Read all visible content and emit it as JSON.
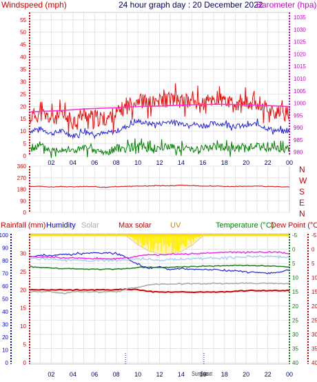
{
  "header": {
    "wind_label": "Windspeed (mph)",
    "title": "24 hour graph day : 20 December 2022",
    "baro_label": "Barometer (hpa)"
  },
  "compass": [
    "N",
    "W",
    "S",
    "E",
    "N"
  ],
  "bottom_labels": {
    "rain": "Rainfall (mm)",
    "humidity": "Humidity",
    "solar": "Solar",
    "maxsolar": "Max solar",
    "uv": "UV",
    "temp": "Temperature (°C)",
    "dew": "Dew Point (°C)"
  },
  "marker_labels": {
    "sunrise": "Sunrise",
    "sunset": "Sunset"
  },
  "colors": {
    "wind_gust": "#ff0000",
    "wind_avg": "#2020e0",
    "wind_low": "#008000",
    "barometer": "#ff33cc",
    "direction": "#dd2222",
    "humidity": "#2222cc",
    "rain_line": "#cc0000",
    "solar": "#aaaaaa",
    "temperature": "#228822",
    "dewpoint": "#ee22ee",
    "feels": "#aaccee",
    "uv": "#ffee00",
    "axis_red": "#cc0000",
    "axis_magenta": "#cc00cc",
    "axis_blue": "#0000cc",
    "axis_green": "#008000"
  },
  "chart_data": [
    {
      "type": "line",
      "title": "24 hour graph day : 20 December 2022",
      "ylabel": "Windspeed (mph)",
      "y2label": "Barometer (hpa)",
      "x_ticks": [
        "02",
        "04",
        "06",
        "08",
        "10",
        "12",
        "14",
        "16",
        "18",
        "20",
        "22",
        "00"
      ],
      "x_range": [
        0,
        24
      ],
      "y_ticks": [
        0,
        5,
        10,
        15,
        20,
        25,
        30,
        35,
        40,
        45,
        50,
        55
      ],
      "ylim": [
        0,
        58
      ],
      "y2_ticks": [
        980,
        985,
        990,
        995,
        1000,
        1005,
        1010,
        1015,
        1020,
        1025,
        1030,
        1035
      ],
      "y2lim": [
        978.5,
        1037
      ],
      "x": [
        0,
        1,
        2,
        3,
        4,
        5,
        6,
        7,
        8,
        9,
        10,
        11,
        12,
        13,
        14,
        15,
        16,
        17,
        18,
        19,
        20,
        21,
        22,
        23,
        24
      ],
      "series": [
        {
          "name": "gust",
          "values": [
            16,
            17,
            15,
            16,
            14,
            17,
            15,
            15,
            17,
            20,
            23,
            21,
            22,
            23,
            22,
            22,
            21,
            23,
            22,
            20,
            21,
            22,
            19,
            17,
            17
          ]
        },
        {
          "name": "average",
          "values": [
            10,
            11,
            9,
            10,
            8,
            10,
            9,
            9,
            10,
            12,
            14,
            13,
            13,
            14,
            13,
            13,
            12,
            13,
            13,
            12,
            12,
            13,
            11,
            10,
            10
          ]
        },
        {
          "name": "low",
          "values": [
            3,
            4,
            2,
            3,
            2,
            3,
            2,
            1,
            3,
            3,
            4,
            3,
            3,
            4,
            3,
            3,
            3,
            4,
            3,
            3,
            3,
            4,
            3,
            3,
            3
          ]
        },
        {
          "name": "barometer",
          "values": [
            996.4,
            996.6,
            996.8,
            997.0,
            997.3,
            997.6,
            997.8,
            998.0,
            998.1,
            998.4,
            998.6,
            998.8,
            998.8,
            999.0,
            999.2,
            999.3,
            999.4,
            999.5,
            999.5,
            999.4,
            999.3,
            999.2,
            999.0,
            998.8,
            998.6
          ]
        }
      ]
    },
    {
      "type": "line",
      "ylabel": "Direction",
      "y_ticks": [
        0,
        90,
        180,
        270,
        360
      ],
      "ylim": [
        0,
        360
      ],
      "x": [
        0,
        1,
        2,
        3,
        4,
        5,
        6,
        7,
        8,
        9,
        10,
        11,
        12,
        13,
        14,
        15,
        16,
        17,
        18,
        19,
        20,
        21,
        22,
        23,
        24
      ],
      "series": [
        {
          "name": "direction",
          "values": [
            200,
            203,
            198,
            201,
            199,
            202,
            200,
            197,
            200,
            203,
            205,
            207,
            209,
            207,
            212,
            208,
            205,
            205,
            203,
            202,
            204,
            205,
            202,
            200,
            198
          ]
        }
      ]
    },
    {
      "type": "line",
      "ylabel": "Humidity",
      "y_ticks_humidity": [
        0,
        10,
        20,
        30,
        40,
        50,
        60,
        70,
        80,
        90,
        100
      ],
      "y_ticks_rain": [
        0,
        5,
        10,
        15,
        20,
        25,
        30
      ],
      "y_ticks_temp": [
        -5,
        0,
        5,
        10,
        15,
        20,
        25,
        30,
        35,
        40
      ],
      "x": [
        0,
        1,
        2,
        3,
        4,
        5,
        6,
        7,
        8,
        9,
        10,
        11,
        12,
        13,
        14,
        15,
        16,
        17,
        18,
        19,
        20,
        21,
        22,
        23,
        24
      ],
      "series": [
        {
          "name": "humidity",
          "axis": "humidity",
          "values": [
            83,
            84,
            84,
            85,
            85,
            86,
            86,
            86,
            86,
            82,
            77,
            74,
            75,
            73,
            74,
            73,
            73,
            73,
            72,
            72,
            71,
            71,
            70,
            71,
            73
          ]
        },
        {
          "name": "rainfall line",
          "axis": "rain",
          "values": [
            20,
            20,
            20,
            20,
            20,
            20,
            20,
            20,
            20,
            20,
            20,
            19.6,
            19.4,
            19.4,
            19.4,
            19.4,
            19.4,
            19.4,
            19.4,
            19.6,
            19.8,
            19.8,
            19.8,
            19.8,
            19.8
          ]
        },
        {
          "name": "solar",
          "axis": "temp",
          "values": [
            15,
            15,
            15,
            15.5,
            15,
            15,
            15,
            15,
            15,
            14,
            13.5,
            12.6,
            12.3,
            12.2,
            12.1,
            12.1,
            12.2,
            12,
            12,
            12,
            12,
            12,
            12,
            12.1,
            12.1
          ]
        },
        {
          "name": "temperature",
          "axis": "temp",
          "values": [
            6,
            6.5,
            6.6,
            6.8,
            6.8,
            7,
            7,
            7,
            7,
            6.8,
            6.5,
            6.3,
            6.4,
            6.3,
            6.2,
            6.1,
            6,
            5.9,
            5.8,
            5.7,
            5.7,
            5.8,
            5.9,
            6,
            6.3
          ]
        },
        {
          "name": "feels",
          "axis": "temp",
          "values": [
            3,
            3.5,
            3.5,
            3.8,
            3.8,
            4,
            4,
            4,
            4,
            3.8,
            3.5,
            3.5,
            3.9,
            3.6,
            3.3,
            3.3,
            3.2,
            3.1,
            3,
            2.8,
            2.7,
            2.6,
            2.5,
            2.5,
            3
          ]
        },
        {
          "name": "dewpoint",
          "axis": "temp",
          "values": [
            2.5,
            2.7,
            2.8,
            3,
            3,
            3.2,
            3.3,
            3.3,
            3.3,
            3,
            2.5,
            2,
            2,
            1.8,
            1.6,
            1.5,
            1.4,
            1.2,
            1,
            1,
            1,
            1,
            1,
            1,
            1.5
          ]
        },
        {
          "name": "maxsolar",
          "axis": "temp",
          "values": [
            null,
            null,
            null,
            null,
            null,
            null,
            null,
            null,
            null,
            -4.5,
            -1.6,
            0.6,
            1.6,
            1.7,
            0.8,
            -1.4,
            -4.6,
            null,
            null,
            null,
            null,
            null,
            null,
            null,
            null
          ]
        },
        {
          "name": "uv",
          "axis": "temp",
          "values": [
            null,
            null,
            null,
            null,
            null,
            null,
            null,
            null,
            null,
            -4.6,
            -3.8,
            -2,
            -0.5,
            -1.5,
            -2.5,
            -3.5,
            -4.6,
            null,
            null,
            null,
            null,
            null,
            null,
            null,
            null
          ]
        }
      ],
      "markers": {
        "sunrise_hour": 8.85,
        "sunset_hour": 16.1
      }
    }
  ]
}
